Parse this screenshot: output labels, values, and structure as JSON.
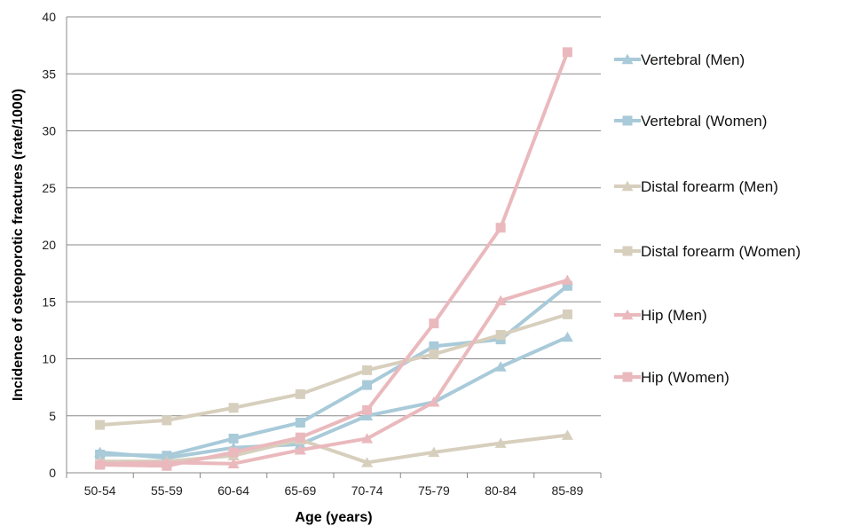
{
  "chart_data": {
    "type": "line",
    "xlabel": "Age (years)",
    "ylabel": "Incidence of osteoporotic fractures (rate/1000)",
    "categories": [
      "50-54",
      "55-59",
      "60-64",
      "65-69",
      "70-74",
      "75-79",
      "80-84",
      "85-89"
    ],
    "ylim": [
      0,
      40
    ],
    "yticks": [
      0,
      5,
      10,
      15,
      20,
      25,
      30,
      35,
      40
    ],
    "grid": true,
    "legend_position": "right",
    "series": [
      {
        "name": "Vertebral (Men)",
        "color": "#a8cad9",
        "marker": "triangle",
        "values": [
          1.8,
          1.3,
          2.2,
          2.5,
          5.0,
          6.2,
          9.3,
          11.9
        ]
      },
      {
        "name": "Vertebral (Women)",
        "color": "#a8cad9",
        "marker": "square",
        "values": [
          1.6,
          1.5,
          3.0,
          4.4,
          7.7,
          11.1,
          11.7,
          16.4
        ]
      },
      {
        "name": "Distal forearm (Men)",
        "color": "#d7cfbd",
        "marker": "triangle",
        "values": [
          1.0,
          1.0,
          1.5,
          2.9,
          0.9,
          1.8,
          2.6,
          3.3
        ]
      },
      {
        "name": "Distal forearm (Women)",
        "color": "#d7cfbd",
        "marker": "square",
        "values": [
          4.2,
          4.6,
          5.7,
          6.9,
          9.0,
          10.4,
          12.1,
          13.9
        ]
      },
      {
        "name": "Hip (Men)",
        "color": "#eab9bd",
        "marker": "triangle",
        "values": [
          0.8,
          0.9,
          0.8,
          2.0,
          3.0,
          6.2,
          15.1,
          16.9
        ]
      },
      {
        "name": "Hip (Women)",
        "color": "#eab9bd",
        "marker": "square",
        "values": [
          0.7,
          0.6,
          1.8,
          3.1,
          5.5,
          13.1,
          21.5,
          36.9
        ]
      }
    ]
  }
}
